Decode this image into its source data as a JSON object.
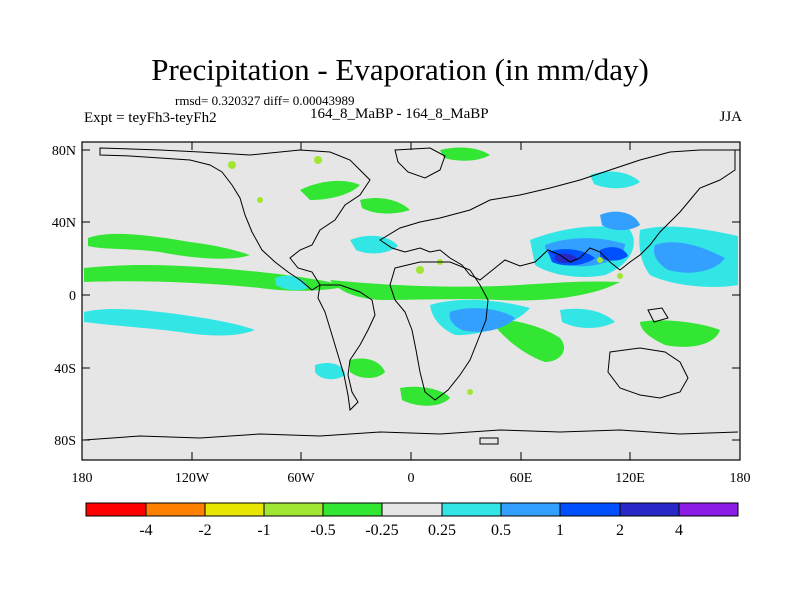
{
  "title": "Precipitation - Evaporation (in mm/day)",
  "stats": "rmsd= 0.320327 diff= 0.00043989",
  "comparison": "164_8_MaBP - 164_8_MaBP",
  "experiment": "Expt = teyFh3-teyFh2",
  "season": "JJA",
  "map": {
    "background": "#e6e6e6",
    "lon_ticks": [
      "180",
      "120W",
      "60W",
      "0",
      "60E",
      "120E",
      "180"
    ],
    "lat_ticks": [
      "80N",
      "40N",
      "0",
      "40S",
      "80S"
    ]
  },
  "colorbar": {
    "colors": [
      "#ff0000",
      "#ff8000",
      "#e6e600",
      "#a0e632",
      "#33e633",
      "#e6e6e6",
      "#33e6e6",
      "#33a0ff",
      "#0050ff",
      "#2828c8",
      "#8c1ee6"
    ],
    "labels": [
      "-4",
      "-2",
      "-1",
      "-0.5",
      "-0.25",
      "0.25",
      "0.5",
      "1",
      "2",
      "4"
    ]
  }
}
